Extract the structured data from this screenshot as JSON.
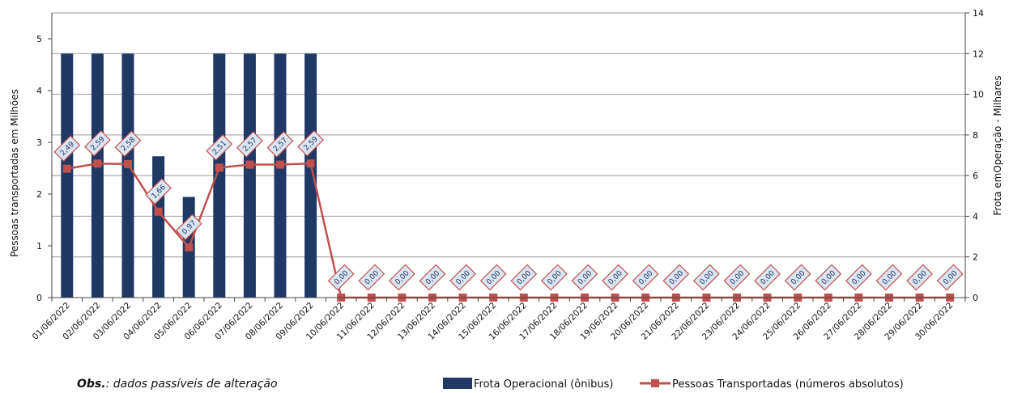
{
  "chart_data": {
    "type": "bar",
    "categories": [
      "01/06/2022",
      "02/06/2022",
      "03/06/2022",
      "04/06/2022",
      "05/06/2022",
      "06/06/2022",
      "07/06/2022",
      "08/06/2022",
      "09/06/2022",
      "10/06/2022",
      "11/06/2022",
      "12/06/2022",
      "13/06/2022",
      "14/06/2022",
      "15/06/2022",
      "16/06/2022",
      "17/06/2022",
      "18/06/2022",
      "19/06/2022",
      "20/06/2022",
      "21/06/2022",
      "22/06/2022",
      "23/06/2022",
      "24/06/2022",
      "25/06/2022",
      "26/06/2022",
      "27/06/2022",
      "28/06/2022",
      "29/06/2022",
      "30/06/2022"
    ],
    "series": [
      {
        "name": "Frota Operacional (ônibus)",
        "type": "bar",
        "axis": "right",
        "color": "#1f3864",
        "values": [
          12,
          12,
          12,
          6.95,
          4.95,
          12,
          12,
          12,
          12,
          0,
          0,
          0,
          0,
          0,
          0,
          0,
          0,
          0,
          0,
          0,
          0,
          0,
          0,
          0,
          0,
          0,
          0,
          0,
          0,
          0
        ]
      },
      {
        "name": "Pessoas Transportadas (números absolutos)",
        "type": "line",
        "axis": "left",
        "color": "#c0504d",
        "values": [
          2.49,
          2.59,
          2.58,
          1.66,
          0.97,
          2.51,
          2.57,
          2.57,
          2.59,
          0,
          0,
          0,
          0,
          0,
          0,
          0,
          0,
          0,
          0,
          0,
          0,
          0,
          0,
          0,
          0,
          0,
          0,
          0,
          0,
          0
        ],
        "labels": [
          "2,49",
          "2,59",
          "2,58",
          "1,66",
          "0,97",
          "2,51",
          "2,57",
          "2,57",
          "2,59",
          "0,00",
          "0,00",
          "0,00",
          "0,00",
          "0,00",
          "0,00",
          "0,00",
          "0,00",
          "0,00",
          "0,00",
          "0,00",
          "0,00",
          "0,00",
          "0,00",
          "0,00",
          "0,00",
          "0,00",
          "0,00",
          "0,00",
          "0,00",
          "0,00"
        ]
      }
    ],
    "ylabel": "Pessoas transportadas em Milhões",
    "y2label": "Frota emOperação - Milhares",
    "ylim": [
      0,
      5.5
    ],
    "y2lim": [
      0,
      14
    ],
    "yticks": [
      "0",
      "1",
      "2",
      "3",
      "4",
      "5"
    ],
    "y2ticks": [
      "0",
      "2",
      "4",
      "6",
      "8",
      "10",
      "12",
      "14"
    ],
    "grid": true,
    "legend": "bottom-right"
  },
  "note": {
    "bold": "Obs.",
    "text": ": dados passíveis  de  alteração"
  }
}
